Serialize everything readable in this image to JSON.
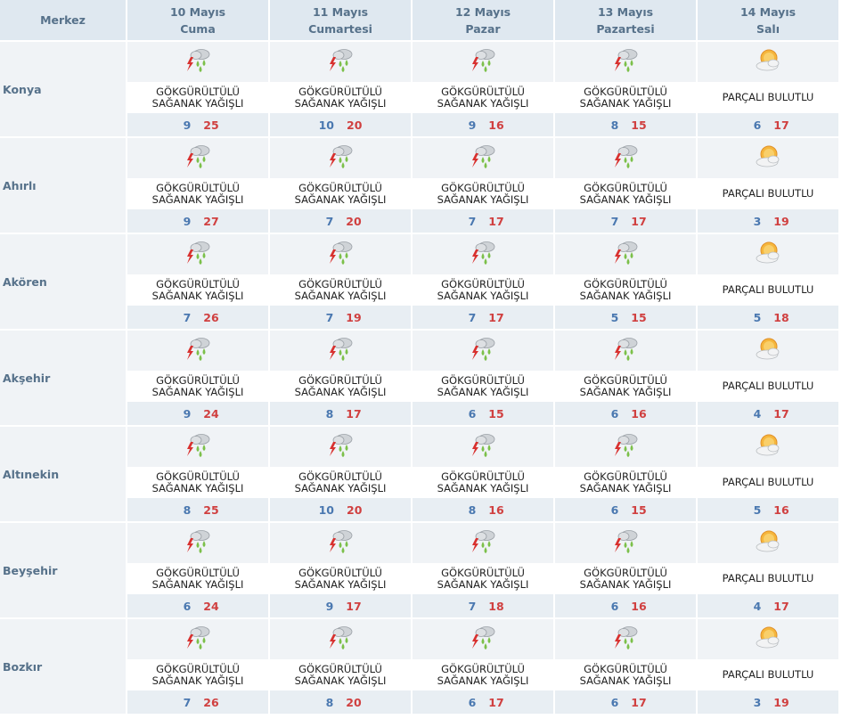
{
  "header": {
    "merkez": "Merkez",
    "days": [
      {
        "date": "10 Mayıs",
        "day": "Cuma"
      },
      {
        "date": "11 Mayıs",
        "day": "Cumartesi"
      },
      {
        "date": "12 Mayıs",
        "day": "Pazar"
      },
      {
        "date": "13 Mayıs",
        "day": "Pazartesi"
      },
      {
        "date": "14 Mayıs",
        "day": "Salı"
      }
    ]
  },
  "colors": {
    "header_bg": "#dfe8f0",
    "row_bg": "#f0f3f6",
    "temp_bg": "#e8eef3",
    "min_temp": "#4a78b0",
    "max_temp": "#d04040"
  },
  "rows": [
    {
      "city": "Konya",
      "days": [
        {
          "icon": "thunderstorm-rain-icon",
          "line1": "GÖKGÜRÜLTÜLÜ",
          "line2": "SAĞANAK YAĞIŞLI",
          "min": "9",
          "max": "25"
        },
        {
          "icon": "thunderstorm-rain-icon",
          "line1": "GÖKGÜRÜLTÜLÜ",
          "line2": "SAĞANAK YAĞIŞLI",
          "min": "10",
          "max": "20"
        },
        {
          "icon": "thunderstorm-rain-icon",
          "line1": "GÖKGÜRÜLTÜLÜ",
          "line2": "SAĞANAK YAĞIŞLI",
          "min": "9",
          "max": "16"
        },
        {
          "icon": "thunderstorm-rain-icon",
          "line1": "GÖKGÜRÜLTÜLÜ",
          "line2": "SAĞANAK YAĞIŞLI",
          "min": "8",
          "max": "15"
        },
        {
          "icon": "partly-cloudy-icon",
          "line1": "PARÇALI BULUTLU",
          "line2": "",
          "min": "6",
          "max": "17"
        }
      ]
    },
    {
      "city": "Ahırlı",
      "days": [
        {
          "icon": "thunderstorm-rain-icon",
          "line1": "GÖKGÜRÜLTÜLÜ",
          "line2": "SAĞANAK YAĞIŞLI",
          "min": "9",
          "max": "27"
        },
        {
          "icon": "thunderstorm-rain-icon",
          "line1": "GÖKGÜRÜLTÜLÜ",
          "line2": "SAĞANAK YAĞIŞLI",
          "min": "7",
          "max": "20"
        },
        {
          "icon": "thunderstorm-rain-icon",
          "line1": "GÖKGÜRÜLTÜLÜ",
          "line2": "SAĞANAK YAĞIŞLI",
          "min": "7",
          "max": "17"
        },
        {
          "icon": "thunderstorm-rain-icon",
          "line1": "GÖKGÜRÜLTÜLÜ",
          "line2": "SAĞANAK YAĞIŞLI",
          "min": "7",
          "max": "17"
        },
        {
          "icon": "partly-cloudy-icon",
          "line1": "PARÇALI BULUTLU",
          "line2": "",
          "min": "3",
          "max": "19"
        }
      ]
    },
    {
      "city": "Akören",
      "days": [
        {
          "icon": "thunderstorm-rain-icon",
          "line1": "GÖKGÜRÜLTÜLÜ",
          "line2": "SAĞANAK YAĞIŞLI",
          "min": "7",
          "max": "26"
        },
        {
          "icon": "thunderstorm-rain-icon",
          "line1": "GÖKGÜRÜLTÜLÜ",
          "line2": "SAĞANAK YAĞIŞLI",
          "min": "7",
          "max": "19"
        },
        {
          "icon": "thunderstorm-rain-icon",
          "line1": "GÖKGÜRÜLTÜLÜ",
          "line2": "SAĞANAK YAĞIŞLI",
          "min": "7",
          "max": "17"
        },
        {
          "icon": "thunderstorm-rain-icon",
          "line1": "GÖKGÜRÜLTÜLÜ",
          "line2": "SAĞANAK YAĞIŞLI",
          "min": "5",
          "max": "15"
        },
        {
          "icon": "partly-cloudy-icon",
          "line1": "PARÇALI BULUTLU",
          "line2": "",
          "min": "5",
          "max": "18"
        }
      ]
    },
    {
      "city": "Akşehir",
      "days": [
        {
          "icon": "thunderstorm-rain-icon",
          "line1": "GÖKGÜRÜLTÜLÜ",
          "line2": "SAĞANAK YAĞIŞLI",
          "min": "9",
          "max": "24"
        },
        {
          "icon": "thunderstorm-rain-icon",
          "line1": "GÖKGÜRÜLTÜLÜ",
          "line2": "SAĞANAK YAĞIŞLI",
          "min": "8",
          "max": "17"
        },
        {
          "icon": "thunderstorm-rain-icon",
          "line1": "GÖKGÜRÜLTÜLÜ",
          "line2": "SAĞANAK YAĞIŞLI",
          "min": "6",
          "max": "15"
        },
        {
          "icon": "thunderstorm-rain-icon",
          "line1": "GÖKGÜRÜLTÜLÜ",
          "line2": "SAĞANAK YAĞIŞLI",
          "min": "6",
          "max": "16"
        },
        {
          "icon": "partly-cloudy-icon",
          "line1": "PARÇALI BULUTLU",
          "line2": "",
          "min": "4",
          "max": "17"
        }
      ]
    },
    {
      "city": "Altınekin",
      "days": [
        {
          "icon": "thunderstorm-rain-icon",
          "line1": "GÖKGÜRÜLTÜLÜ",
          "line2": "SAĞANAK YAĞIŞLI",
          "min": "8",
          "max": "25"
        },
        {
          "icon": "thunderstorm-rain-icon",
          "line1": "GÖKGÜRÜLTÜLÜ",
          "line2": "SAĞANAK YAĞIŞLI",
          "min": "10",
          "max": "20"
        },
        {
          "icon": "thunderstorm-rain-icon",
          "line1": "GÖKGÜRÜLTÜLÜ",
          "line2": "SAĞANAK YAĞIŞLI",
          "min": "8",
          "max": "16"
        },
        {
          "icon": "thunderstorm-rain-icon",
          "line1": "GÖKGÜRÜLTÜLÜ",
          "line2": "SAĞANAK YAĞIŞLI",
          "min": "6",
          "max": "15"
        },
        {
          "icon": "partly-cloudy-icon",
          "line1": "PARÇALI BULUTLU",
          "line2": "",
          "min": "5",
          "max": "16"
        }
      ]
    },
    {
      "city": "Beyşehir",
      "days": [
        {
          "icon": "thunderstorm-rain-icon",
          "line1": "GÖKGÜRÜLTÜLÜ",
          "line2": "SAĞANAK YAĞIŞLI",
          "min": "6",
          "max": "24"
        },
        {
          "icon": "thunderstorm-rain-icon",
          "line1": "GÖKGÜRÜLTÜLÜ",
          "line2": "SAĞANAK YAĞIŞLI",
          "min": "9",
          "max": "17"
        },
        {
          "icon": "thunderstorm-rain-icon",
          "line1": "GÖKGÜRÜLTÜLÜ",
          "line2": "SAĞANAK YAĞIŞLI",
          "min": "7",
          "max": "18"
        },
        {
          "icon": "thunderstorm-rain-icon",
          "line1": "GÖKGÜRÜLTÜLÜ",
          "line2": "SAĞANAK YAĞIŞLI",
          "min": "6",
          "max": "16"
        },
        {
          "icon": "partly-cloudy-icon",
          "line1": "PARÇALI BULUTLU",
          "line2": "",
          "min": "4",
          "max": "17"
        }
      ]
    },
    {
      "city": "Bozkır",
      "days": [
        {
          "icon": "thunderstorm-rain-icon",
          "line1": "GÖKGÜRÜLTÜLÜ",
          "line2": "SAĞANAK YAĞIŞLI",
          "min": "7",
          "max": "26"
        },
        {
          "icon": "thunderstorm-rain-icon",
          "line1": "GÖKGÜRÜLTÜLÜ",
          "line2": "SAĞANAK YAĞIŞLI",
          "min": "8",
          "max": "20"
        },
        {
          "icon": "thunderstorm-rain-icon",
          "line1": "GÖKGÜRÜLTÜLÜ",
          "line2": "SAĞANAK YAĞIŞLI",
          "min": "6",
          "max": "17"
        },
        {
          "icon": "thunderstorm-rain-icon",
          "line1": "GÖKGÜRÜLTÜLÜ",
          "line2": "SAĞANAK YAĞIŞLI",
          "min": "6",
          "max": "17"
        },
        {
          "icon": "partly-cloudy-icon",
          "line1": "PARÇALI BULUTLU",
          "line2": "",
          "min": "3",
          "max": "19"
        }
      ]
    }
  ]
}
